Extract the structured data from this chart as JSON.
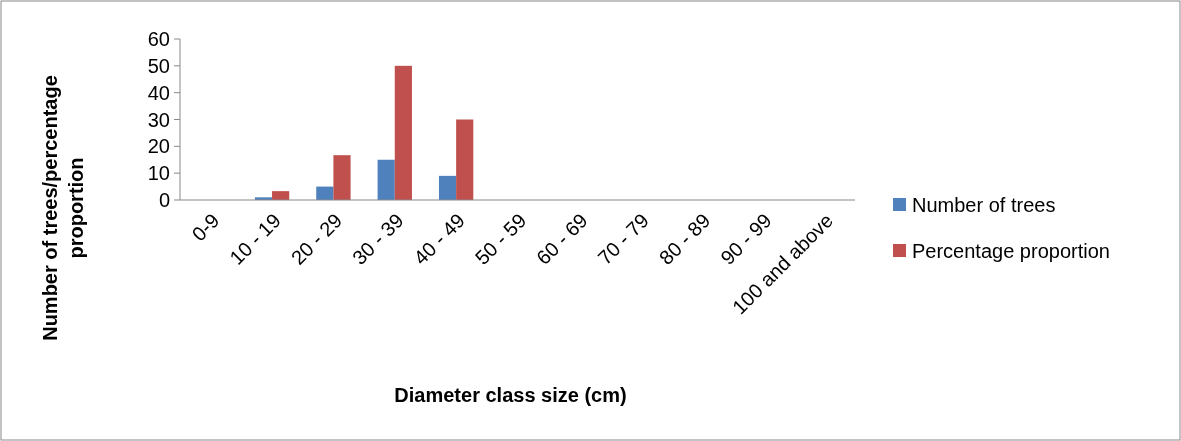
{
  "chart_data": {
    "type": "bar",
    "xlabel": "Diameter class size (cm)",
    "ylabel": "Number of trees/percentage proportion",
    "categories": [
      "0-9",
      "10 - 19",
      "20 - 29",
      "30 - 39",
      "40 - 49",
      "50 - 59",
      "60 - 69",
      "70 - 79",
      "80 - 89",
      "90 - 99",
      "100 and above"
    ],
    "series": [
      {
        "name": "Number of trees",
        "color": "#4f81bd",
        "values": [
          0,
          1,
          5,
          15,
          9,
          0,
          0,
          0,
          0,
          0,
          0
        ]
      },
      {
        "name": "Percentage proportion",
        "color": "#c0504d",
        "values": [
          0,
          3.3,
          16.7,
          50,
          30,
          0,
          0,
          0,
          0,
          0,
          0
        ]
      }
    ],
    "ylim": [
      0,
      60
    ],
    "yticks": [
      0,
      10,
      20,
      30,
      40,
      50,
      60
    ],
    "grid": false,
    "legend": "right"
  }
}
